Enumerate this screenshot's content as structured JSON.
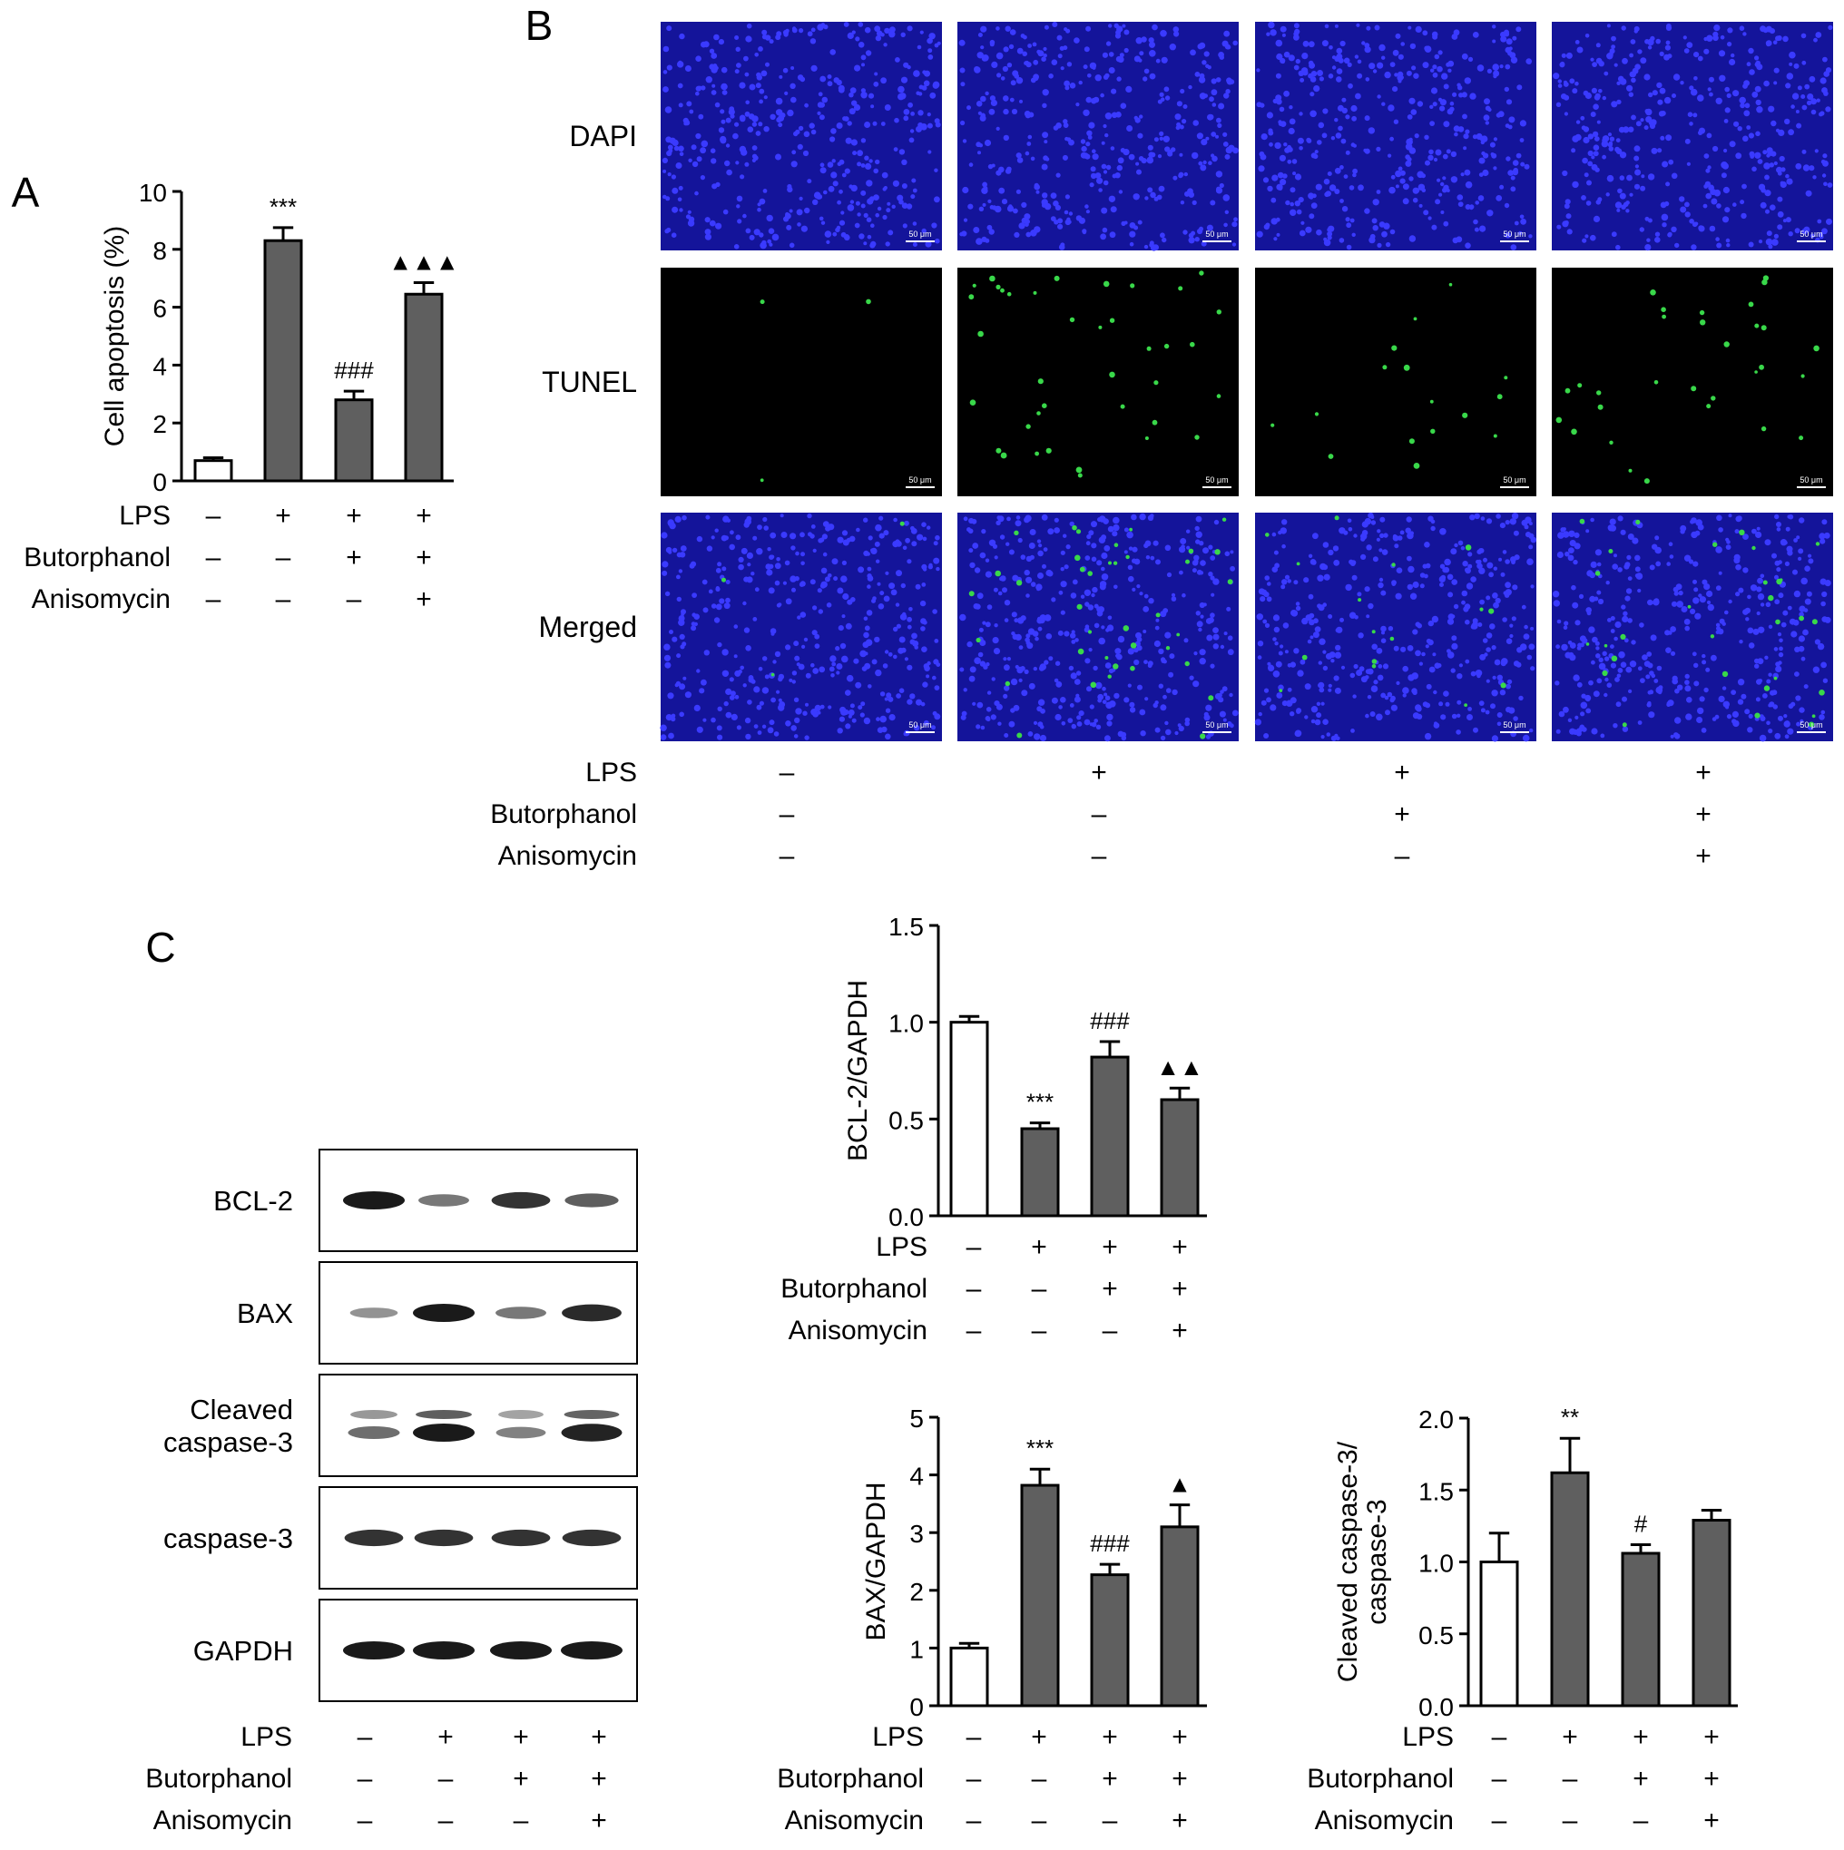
{
  "panel_letters": {
    "a": "A",
    "b": "B",
    "c": "C"
  },
  "treatments": {
    "labels": [
      "LPS",
      "Butorphanol",
      "Anisomycin"
    ],
    "groups": [
      [
        "–",
        "+",
        "+",
        "+"
      ],
      [
        "–",
        "–",
        "+",
        "+"
      ],
      [
        "–",
        "–",
        "–",
        "+"
      ]
    ]
  },
  "colors": {
    "control_bar": "#ffffff",
    "treated_bar": "#5f5f5f",
    "dapi_background": "#14149a",
    "dapi_nuclei": "#3a3aff",
    "tunel_background": "#000000",
    "tunel_positive": "#39d84a",
    "blot_band": "#1a1a1a"
  },
  "microscopy": {
    "row_labels": [
      "DAPI",
      "TUNEL",
      "Merged"
    ],
    "scale_bar": "50 μm"
  },
  "western_blot": {
    "bands": [
      "BCL-2",
      "BAX",
      "Cleaved caspase-3",
      "caspase-3",
      "GAPDH"
    ],
    "band_label_lines": [
      [
        "BCL-2"
      ],
      [
        "BAX"
      ],
      [
        "Cleaved",
        "caspase-3"
      ],
      [
        "caspase-3"
      ],
      [
        "GAPDH"
      ]
    ],
    "band_intensity": [
      [
        1.0,
        0.45,
        0.85,
        0.6
      ],
      [
        0.3,
        1.0,
        0.45,
        0.9
      ],
      [
        0.5,
        1.0,
        0.4,
        0.95
      ],
      [
        0.85,
        0.85,
        0.85,
        0.85
      ],
      [
        1.0,
        1.0,
        1.0,
        1.0
      ]
    ]
  },
  "chart_data": [
    {
      "id": "A",
      "type": "bar",
      "ylabel": "Cell apoptosis (%)",
      "ylim": [
        0,
        10
      ],
      "yticks": [
        "0",
        "2",
        "4",
        "6",
        "8",
        "10"
      ],
      "series": [
        {
          "values": [
            0.7,
            8.3,
            2.8,
            6.45
          ],
          "errors": [
            0.1,
            0.45,
            0.3,
            0.4
          ]
        }
      ],
      "annotations": [
        "",
        "***",
        "###",
        "▲▲▲"
      ]
    },
    {
      "id": "C1",
      "type": "bar",
      "ylabel": "BCL-2/GAPDH",
      "ylim": [
        0,
        1.5
      ],
      "yticks": [
        "0.0",
        "0.5",
        "1.0",
        "1.5"
      ],
      "series": [
        {
          "values": [
            1.0,
            0.45,
            0.82,
            0.6
          ],
          "errors": [
            0.03,
            0.03,
            0.08,
            0.06
          ]
        }
      ],
      "annotations": [
        "",
        "***",
        "###",
        "▲▲"
      ]
    },
    {
      "id": "C2",
      "type": "bar",
      "ylabel": "BAX/GAPDH",
      "ylim": [
        0,
        5
      ],
      "yticks": [
        "0",
        "1",
        "2",
        "3",
        "4",
        "5"
      ],
      "series": [
        {
          "values": [
            1.0,
            3.82,
            2.27,
            3.1
          ],
          "errors": [
            0.08,
            0.28,
            0.18,
            0.38
          ]
        }
      ],
      "annotations": [
        "",
        "***",
        "###",
        "▲"
      ]
    },
    {
      "id": "C3",
      "type": "bar",
      "ylabel": "Cleaved caspase-3/ caspase-3",
      "ylabel_lines": [
        "Cleaved caspase-3/",
        "caspase-3"
      ],
      "ylim": [
        0,
        2.0
      ],
      "yticks": [
        "0.0",
        "0.5",
        "1.0",
        "1.5",
        "2.0"
      ],
      "series": [
        {
          "values": [
            1.0,
            1.62,
            1.06,
            1.29
          ],
          "errors": [
            0.2,
            0.24,
            0.06,
            0.07
          ]
        }
      ],
      "annotations": [
        "",
        "**",
        "#",
        ""
      ]
    }
  ]
}
